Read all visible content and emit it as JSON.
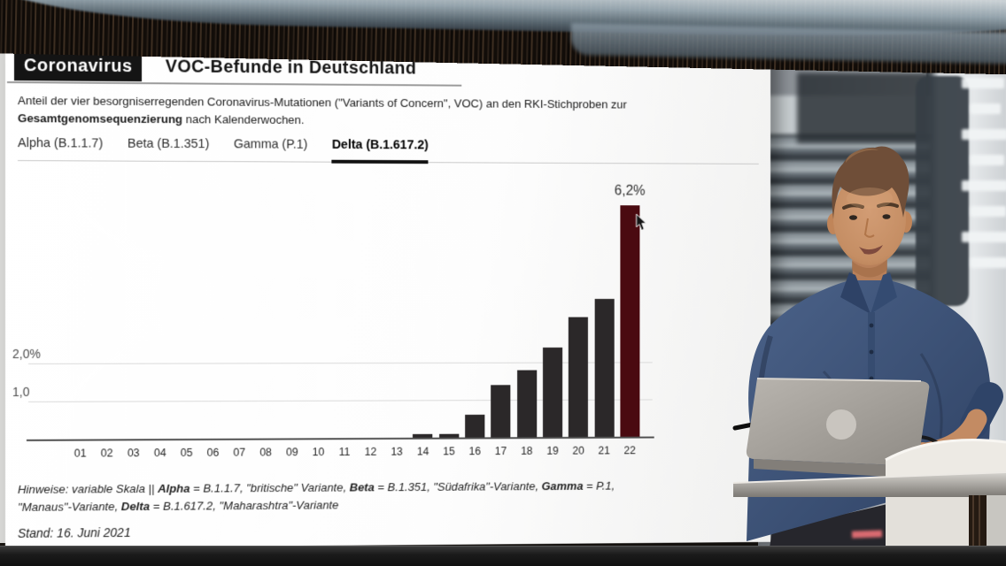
{
  "header": {
    "kicker": "Coronavirus",
    "title": "VOC-Befunde in Deutschland"
  },
  "description": {
    "part1": "Anteil der vier besorgniserregenden Coronavirus-Mutationen (\"Variants of Concern\", VOC) an den RKI-Stichproben zur ",
    "bold": "Gesamtgenomsequenzierung",
    "part2": " nach Kalenderwochen."
  },
  "tabs": [
    {
      "label": "Alpha (B.1.1.7)",
      "active": false
    },
    {
      "label": "Beta (B.1.351)",
      "active": false
    },
    {
      "label": "Gamma (P.1)",
      "active": false
    },
    {
      "label": "Delta (B.1.617.2)",
      "active": true
    }
  ],
  "chart_data": {
    "type": "bar",
    "series_label": "Delta (B.1.617.2)",
    "categories": [
      "01",
      "02",
      "03",
      "04",
      "05",
      "06",
      "07",
      "08",
      "09",
      "10",
      "11",
      "12",
      "13",
      "14",
      "15",
      "16",
      "17",
      "18",
      "19",
      "20",
      "21",
      "22"
    ],
    "values": [
      0,
      0,
      0,
      0,
      0,
      0,
      0,
      0,
      0,
      0,
      0,
      0,
      0,
      0.1,
      0.1,
      0.6,
      1.4,
      1.8,
      2.4,
      3.2,
      3.7,
      6.2
    ],
    "unit": "percent",
    "top_value_label": "6,2%",
    "highlight_index": 21,
    "bar_color": "#2b2829",
    "highlight_color": "#4a0a10",
    "y_axis": {
      "labels": [
        {
          "text": "2,0%",
          "value": 2.0
        },
        {
          "text": "1,0",
          "value": 1.0
        }
      ],
      "gridlines": [
        1.0,
        2.0
      ],
      "ylim": [
        0,
        6.5
      ]
    },
    "grid": "horizontal",
    "legend": "none"
  },
  "footer": {
    "hinweise_segments": [
      {
        "t": "Hinweise: variable Skala || ",
        "b": false
      },
      {
        "t": "Alpha",
        "b": true
      },
      {
        "t": " = B.1.1.7, \"britische\" Variante, ",
        "b": false
      },
      {
        "t": "Beta",
        "b": true
      },
      {
        "t": " = B.1.351, \"Südafrika\"-Variante, ",
        "b": false
      },
      {
        "t": "Gamma",
        "b": true
      },
      {
        "t": " = P.1, \"Manaus\"-Variante, ",
        "b": false
      },
      {
        "t": "Delta",
        "b": true
      },
      {
        "t": " = B.1.617.2, \"Maharashtra\"-Variante",
        "b": false
      }
    ],
    "stand": "Stand: 16. Juni 2021"
  },
  "icons": {
    "mouse_cursor": "black-arrow-pointer"
  },
  "scene": {
    "type": "tv-studio",
    "presenter": "male news anchor in blue button-up shirt standing behind a silver laptop on a white desk",
    "background": "blurred gray studio wall with horizontal light strips and dark wood band at top"
  }
}
